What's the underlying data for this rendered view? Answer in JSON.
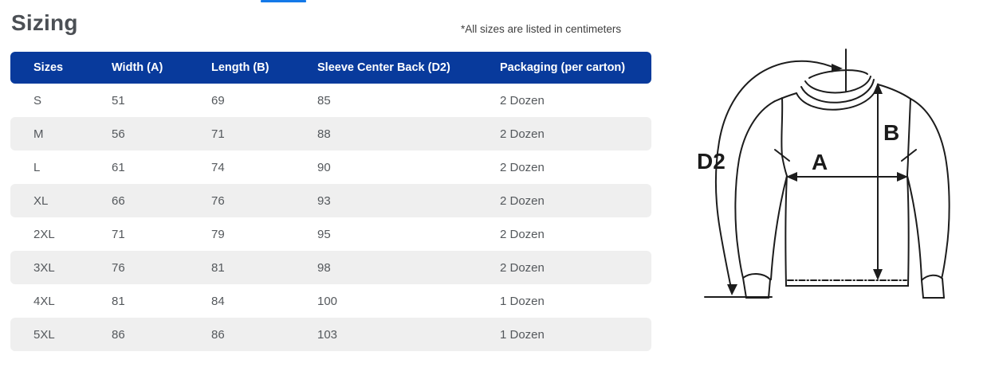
{
  "tab": {
    "indicator_color": "#1479e8"
  },
  "header": {
    "title": "Sizing",
    "note": "*All sizes are listed in centimeters"
  },
  "table": {
    "header_bg": "#083a9c",
    "stripe_bg": "#efefef",
    "columns": [
      "Sizes",
      "Width (A)",
      "Length (B)",
      "Sleeve Center Back (D2)",
      "Packaging (per carton)"
    ],
    "rows": [
      [
        "S",
        "51",
        "69",
        "85",
        "2 Dozen"
      ],
      [
        "M",
        "56",
        "71",
        "88",
        "2 Dozen"
      ],
      [
        "L",
        "61",
        "74",
        "90",
        "2 Dozen"
      ],
      [
        "XL",
        "66",
        "76",
        "93",
        "2 Dozen"
      ],
      [
        "2XL",
        "71",
        "79",
        "95",
        "2 Dozen"
      ],
      [
        "3XL",
        "76",
        "81",
        "98",
        "2 Dozen"
      ],
      [
        "4XL",
        "81",
        "84",
        "100",
        "1 Dozen"
      ],
      [
        "5XL",
        "86",
        "86",
        "103",
        "1 Dozen"
      ]
    ]
  },
  "diagram": {
    "label_d2": "D2",
    "label_a": "A",
    "label_b": "B"
  }
}
